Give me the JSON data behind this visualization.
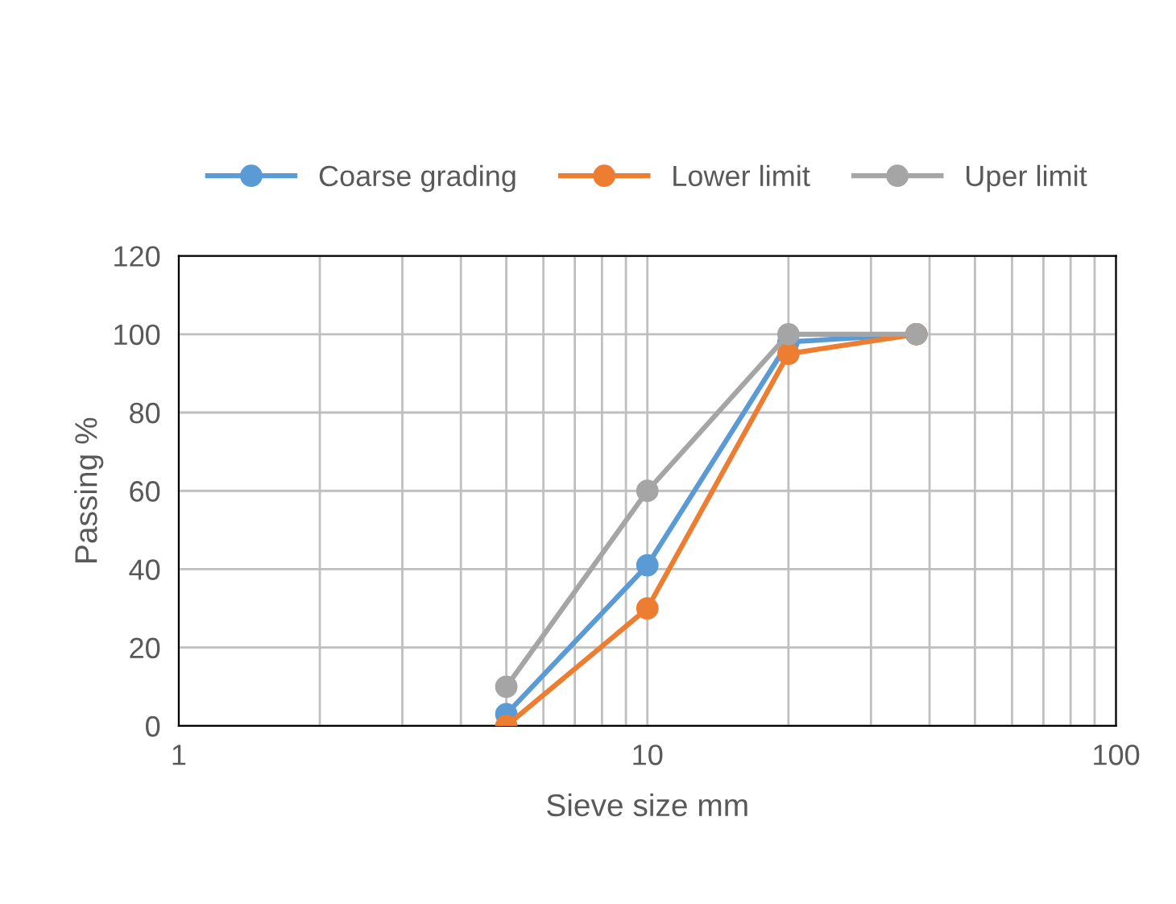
{
  "chart_data": {
    "type": "line",
    "xlabel": "Sieve size mm",
    "ylabel": "Passing %",
    "x": [
      5,
      10,
      20,
      37.5
    ],
    "series": [
      {
        "name": "Coarse grading",
        "color": "#5b9bd5",
        "values": [
          3,
          41,
          98,
          100
        ]
      },
      {
        "name": "Lower limit",
        "color": "#ed7d31",
        "values": [
          0,
          30,
          95,
          100
        ]
      },
      {
        "name": "Uper limit",
        "color": "#a5a5a5",
        "values": [
          10,
          60,
          100,
          100
        ]
      }
    ],
    "log": "x",
    "xlim": [
      1,
      100
    ],
    "ylim": [
      0,
      120
    ],
    "xticks": [
      1,
      {
        "value": 2,
        "label": null
      },
      {
        "value": 3,
        "label": null
      },
      {
        "value": 4,
        "label": null
      },
      {
        "value": 5,
        "label": null
      },
      {
        "value": 6,
        "label": null
      },
      {
        "value": 7,
        "label": null
      },
      {
        "value": 8,
        "label": null
      },
      {
        "value": 9,
        "label": null
      },
      10,
      {
        "value": 20,
        "label": null
      },
      {
        "value": 30,
        "label": null
      },
      {
        "value": 40,
        "label": null
      },
      {
        "value": 50,
        "label": null
      },
      {
        "value": 60,
        "label": null
      },
      {
        "value": 70,
        "label": null
      },
      {
        "value": 80,
        "label": null
      },
      {
        "value": 90,
        "label": null
      },
      100
    ],
    "yticks": [
      0,
      20,
      40,
      60,
      80,
      100,
      120
    ],
    "grid": true,
    "legend": "top",
    "marker": "circle",
    "line_style": "solid"
  }
}
